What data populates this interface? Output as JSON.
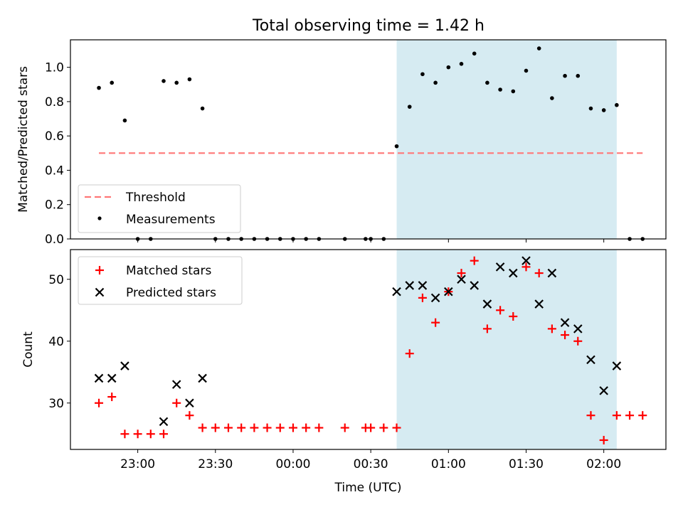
{
  "title": "Total observing time = 1.42 h",
  "colors": {
    "threshold": "#ff7777",
    "measurement": "#000000",
    "matched": "#ff0000",
    "predicted": "#000000",
    "span_fill": "#add8e6"
  },
  "chart_data": [
    {
      "type": "scatter",
      "ylabel": "Matched/Predicted stars",
      "ylim": [
        0,
        1.16
      ],
      "yticks": [
        0.0,
        0.2,
        0.4,
        0.6,
        0.8,
        1.0
      ],
      "ytick_labels": [
        "0.0",
        "0.2",
        "0.4",
        "0.6",
        "0.8",
        "1.0"
      ],
      "grid": false,
      "legend_placement": "lower-left",
      "shaded_span": [
        "00:40",
        "02:05"
      ],
      "threshold": {
        "name": "Threshold",
        "y": 0.5,
        "x_from": "22:45",
        "x_to": "02:15"
      },
      "series": [
        {
          "name": "Measurements",
          "marker": "dot",
          "x": [
            "22:45",
            "22:50",
            "22:55",
            "23:00",
            "23:05",
            "23:10",
            "23:15",
            "23:20",
            "23:25",
            "23:30",
            "23:35",
            "23:40",
            "23:45",
            "23:50",
            "23:55",
            "00:00",
            "00:05",
            "00:10",
            "00:20",
            "00:28",
            "00:30",
            "00:35",
            "00:40",
            "00:45",
            "00:50",
            "00:55",
            "01:00",
            "01:05",
            "01:10",
            "01:15",
            "01:20",
            "01:25",
            "01:30",
            "01:35",
            "01:40",
            "01:45",
            "01:50",
            "01:55",
            "02:00",
            "02:05",
            "02:10",
            "02:15"
          ],
          "y": [
            0.88,
            0.91,
            0.69,
            0.0,
            0.0,
            0.92,
            0.91,
            0.93,
            0.76,
            0.0,
            0.0,
            0.0,
            0.0,
            0.0,
            0.0,
            0.0,
            0.0,
            0.0,
            0.0,
            0.0,
            0.0,
            0.0,
            0.54,
            0.77,
            0.96,
            0.91,
            1.0,
            1.02,
            1.08,
            0.91,
            0.87,
            0.86,
            0.98,
            1.11,
            0.82,
            0.95,
            0.95,
            0.76,
            0.75,
            0.78,
            0.0,
            0.0
          ]
        }
      ]
    },
    {
      "type": "scatter",
      "xlabel": "Time (UTC)",
      "ylabel": "Count",
      "ylim": [
        22.5,
        54.8
      ],
      "yticks": [
        30,
        40,
        50
      ],
      "ytick_labels": [
        "30",
        "40",
        "50"
      ],
      "xticks": [
        "23:00",
        "23:30",
        "00:00",
        "00:30",
        "01:00",
        "01:30",
        "02:00"
      ],
      "xlim": [
        "22:34",
        "02:24"
      ],
      "grid": false,
      "legend_placement": "upper-left",
      "shaded_span": [
        "00:40",
        "02:05"
      ],
      "series": [
        {
          "name": "Matched stars",
          "marker": "plus",
          "x": [
            "22:45",
            "22:50",
            "22:55",
            "23:00",
            "23:05",
            "23:10",
            "23:15",
            "23:20",
            "23:25",
            "23:30",
            "23:35",
            "23:40",
            "23:45",
            "23:50",
            "23:55",
            "00:00",
            "00:05",
            "00:10",
            "00:20",
            "00:28",
            "00:30",
            "00:35",
            "00:40",
            "00:45",
            "00:50",
            "00:55",
            "01:00",
            "01:05",
            "01:10",
            "01:15",
            "01:20",
            "01:25",
            "01:30",
            "01:35",
            "01:40",
            "01:45",
            "01:50",
            "01:55",
            "02:00",
            "02:05",
            "02:10",
            "02:15"
          ],
          "y": [
            30,
            31,
            25,
            25,
            25,
            25,
            30,
            28,
            26,
            26,
            26,
            26,
            26,
            26,
            26,
            26,
            26,
            26,
            26,
            26,
            26,
            26,
            26,
            38,
            47,
            43,
            48,
            51,
            53,
            42,
            45,
            44,
            52,
            51,
            42,
            41,
            40,
            28,
            24,
            28,
            28,
            28
          ]
        },
        {
          "name": "Predicted stars",
          "marker": "x",
          "x": [
            "22:45",
            "22:50",
            "22:55",
            "23:10",
            "23:15",
            "23:20",
            "23:25",
            "00:40",
            "00:45",
            "00:50",
            "00:55",
            "01:00",
            "01:05",
            "01:10",
            "01:15",
            "01:20",
            "01:25",
            "01:30",
            "01:35",
            "01:40",
            "01:45",
            "01:50",
            "01:55",
            "02:00",
            "02:05"
          ],
          "y": [
            34,
            34,
            36,
            27,
            33,
            30,
            34,
            48,
            49,
            49,
            47,
            48,
            50,
            49,
            46,
            52,
            51,
            53,
            46,
            51,
            43,
            42,
            37,
            32,
            36
          ]
        }
      ]
    }
  ]
}
